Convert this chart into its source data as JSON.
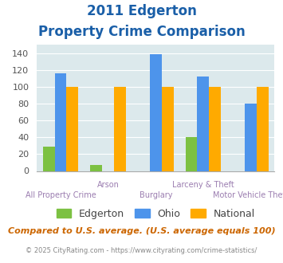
{
  "title_line1": "2011 Edgerton",
  "title_line2": "Property Crime Comparison",
  "categories": [
    "All Property Crime",
    "Arson",
    "Burglary",
    "Larceny & Theft",
    "Motor Vehicle Theft"
  ],
  "edgerton": [
    29,
    7,
    0,
    40,
    0
  ],
  "ohio": [
    116,
    0,
    139,
    112,
    80
  ],
  "national": [
    100,
    100,
    100,
    100,
    100
  ],
  "edgerton_color": "#7cc142",
  "ohio_color": "#4d94eb",
  "national_color": "#ffaa00",
  "ylim": [
    0,
    150
  ],
  "yticks": [
    0,
    20,
    40,
    60,
    80,
    100,
    120,
    140
  ],
  "title_color": "#1a5fa8",
  "xlabel_color": "#9b7db0",
  "legend_labels": [
    "Edgerton",
    "Ohio",
    "National"
  ],
  "footer_text": "Compared to U.S. average. (U.S. average equals 100)",
  "copyright_text": "© 2025 CityRating.com - https://www.cityrating.com/crime-statistics/",
  "bg_color": "#dce9ec",
  "footer_color": "#cc6600",
  "copyright_color": "#888888",
  "bar_width": 0.25
}
